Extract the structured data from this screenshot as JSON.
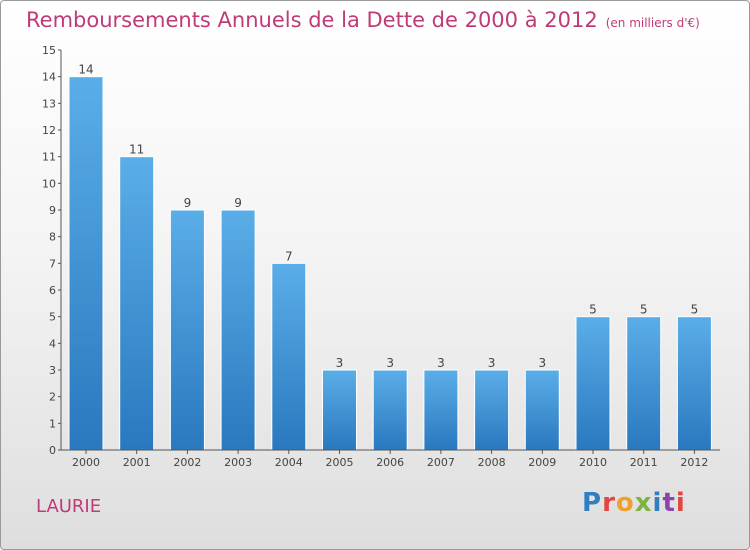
{
  "header": {
    "title": "Remboursements Annuels de la Dette de 2000 à 2012",
    "subtitle": "(en milliers d'€)"
  },
  "footer": {
    "commune": "LAURIE",
    "logo_letters": [
      "P",
      "r",
      "o",
      "x",
      "i",
      "t",
      "i"
    ]
  },
  "colors": {
    "title": "#c13a78",
    "bar_top": "#5aaee8",
    "bar_bottom": "#2a78bf"
  },
  "chart_data": {
    "type": "bar",
    "title": "Remboursements Annuels de la Dette de 2000 à 2012",
    "subtitle": "(en milliers d'€)",
    "xlabel": "",
    "ylabel": "",
    "categories": [
      "2000",
      "2001",
      "2002",
      "2003",
      "2004",
      "2005",
      "2006",
      "2007",
      "2008",
      "2009",
      "2010",
      "2011",
      "2012"
    ],
    "values": [
      14,
      11,
      9,
      9,
      7,
      3,
      3,
      3,
      3,
      3,
      5,
      5,
      5
    ],
    "ylim": [
      0,
      15
    ],
    "yticks": [
      "0",
      "1",
      "2",
      "3",
      "4",
      "5",
      "6",
      "7",
      "8",
      "9",
      "10",
      "11",
      "12",
      "13",
      "14",
      "15"
    ],
    "grid": false,
    "legend": "none"
  }
}
